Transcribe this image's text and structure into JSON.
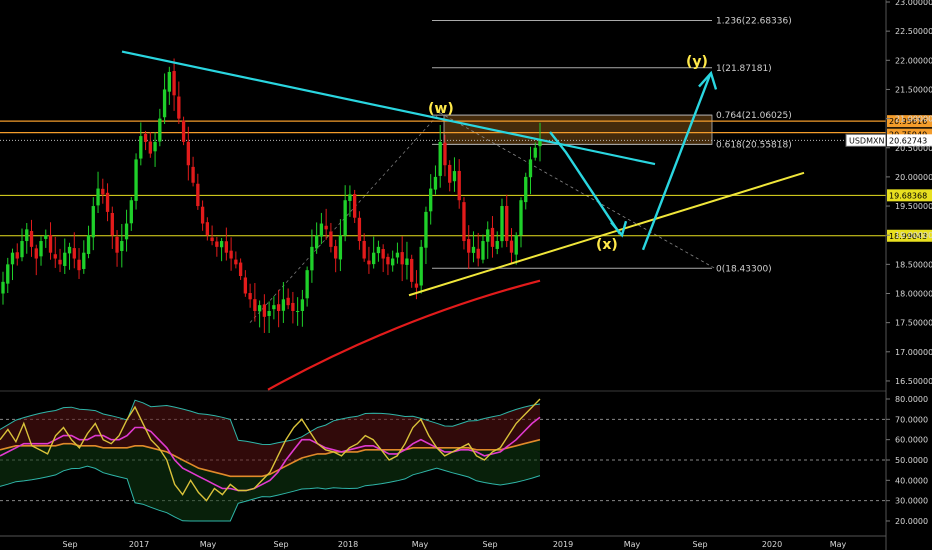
{
  "chart_data": [
    {
      "type": "candlestick",
      "symbol": "USDMXN",
      "price_axis": {
        "ticks": [
          "23.00000",
          "22.50000",
          "22.00000",
          "21.50000",
          "21.00000",
          "20.50000",
          "20.00000",
          "19.50000",
          "19.00000",
          "18.50000",
          "18.00000",
          "17.50000",
          "17.00000",
          "16.50000"
        ]
      },
      "time_axis": {
        "labels": [
          "Sep",
          "2017",
          "May",
          "Sep",
          "2018",
          "May",
          "Sep",
          "2019",
          "May",
          "Sep",
          "2020",
          "May"
        ]
      },
      "last_price": "20.62743",
      "price_tags": [
        {
          "label": "20.95616",
          "color": "#f39c2b"
        },
        {
          "label": "20.75949",
          "color": "#f39c2b"
        },
        {
          "label": "USDMXN",
          "color": "#ffffff"
        },
        {
          "label": "20.62743",
          "color": "#ffffff"
        },
        {
          "label": "19.68368",
          "color": "#e8e020"
        },
        {
          "label": "18.99043",
          "color": "#e8e020"
        }
      ],
      "fib_levels": [
        {
          "label": "1.236(22.68336)",
          "price": 22.68336
        },
        {
          "label": "1(21.87181)",
          "price": 21.87181
        },
        {
          "label": "0.764(21.06025)",
          "price": 21.06025
        },
        {
          "label": "0.618(20.55818)",
          "price": 20.55818
        },
        {
          "label": "0(18.43300)",
          "price": 18.433
        }
      ],
      "wave_labels": [
        "(w)",
        "(x)",
        "(y)"
      ],
      "candles_weekly_close": [
        18.2,
        18.5,
        18.7,
        18.6,
        18.9,
        19.1,
        18.8,
        18.6,
        18.9,
        19.0,
        18.7,
        18.6,
        18.5,
        18.7,
        18.8,
        18.6,
        18.4,
        18.7,
        19.0,
        19.5,
        19.8,
        19.7,
        19.4,
        19.0,
        18.7,
        18.9,
        19.2,
        19.6,
        20.3,
        20.7,
        20.6,
        20.4,
        20.6,
        21.0,
        21.5,
        21.8,
        21.4,
        21.0,
        20.6,
        20.2,
        19.9,
        19.5,
        19.2,
        19.0,
        18.9,
        18.8,
        18.9,
        18.7,
        18.6,
        18.5,
        18.3,
        18.0,
        17.9,
        17.7,
        17.8,
        17.6,
        17.7,
        17.8,
        17.7,
        17.9,
        17.8,
        17.7,
        17.7,
        17.9,
        18.4,
        18.8,
        19.0,
        19.2,
        19.1,
        18.8,
        18.6,
        19.0,
        19.6,
        19.7,
        19.3,
        18.9,
        18.6,
        18.5,
        18.7,
        18.8,
        18.6,
        18.5,
        18.6,
        18.7,
        18.5,
        18.6,
        18.2,
        18.1,
        18.8,
        19.4,
        19.8,
        20.0,
        20.6,
        20.2,
        19.9,
        20.1,
        19.6,
        18.9,
        18.7,
        18.8,
        18.6,
        18.9,
        19.1,
        18.8,
        18.9,
        19.5,
        18.9,
        18.7,
        19.0,
        19.6,
        20.0,
        20.3,
        20.5,
        20.63
      ],
      "trendlines": [
        "resistance (cyan)",
        "support (yellow)",
        "200 MA (red)",
        "projection arrows (cyan)"
      ]
    },
    {
      "type": "line",
      "name": "oscillator",
      "y_axis": {
        "ticks": [
          "80.0000",
          "70.0000",
          "60.0000",
          "50.0000",
          "40.0000",
          "30.0000",
          "20.0000"
        ]
      },
      "levels": [
        70,
        50,
        30
      ],
      "series": [
        {
          "color": "#d9c23a",
          "values": [
            60,
            65,
            59,
            68,
            57,
            55,
            53,
            62,
            66,
            60,
            56,
            63,
            68,
            60,
            58,
            62,
            70,
            76,
            68,
            60,
            56,
            50,
            38,
            33,
            40,
            34,
            30,
            36,
            33,
            38,
            35,
            35,
            36,
            40,
            44,
            52,
            60,
            66,
            70,
            64,
            58,
            55,
            54,
            52,
            56,
            58,
            62,
            60,
            55,
            50,
            52,
            58,
            66,
            70,
            62,
            56,
            52,
            54,
            56,
            58,
            52,
            50,
            54,
            56,
            62,
            68,
            72,
            76,
            80
          ]
        },
        {
          "color": "#e03ad0",
          "values": [
            52,
            54,
            56,
            58,
            58,
            58,
            58,
            60,
            62,
            62,
            60,
            60,
            62,
            62,
            60,
            60,
            62,
            66,
            66,
            64,
            60,
            56,
            50,
            46,
            44,
            42,
            40,
            38,
            36,
            36,
            35,
            35,
            36,
            38,
            40,
            44,
            50,
            55,
            60,
            60,
            58,
            56,
            55,
            54,
            55,
            56,
            57,
            57,
            55,
            53,
            53,
            55,
            58,
            60,
            58,
            56,
            54,
            54,
            55,
            55,
            54,
            52,
            53,
            54,
            57,
            60,
            64,
            68,
            71
          ]
        },
        {
          "color": "#e08a2a",
          "values": [
            55,
            56,
            57,
            57,
            57,
            57,
            57,
            57,
            58,
            58,
            57,
            57,
            57,
            56,
            56,
            56,
            56,
            57,
            57,
            56,
            55,
            54,
            52,
            50,
            48,
            46,
            45,
            44,
            43,
            42,
            42,
            42,
            42,
            42,
            43,
            45,
            47,
            49,
            51,
            52,
            53,
            53,
            54,
            54,
            54,
            54,
            55,
            55,
            55,
            55,
            55,
            55,
            56,
            56,
            56,
            56,
            56,
            56,
            56,
            56,
            55,
            55,
            55,
            55,
            56,
            57,
            58,
            59,
            60
          ]
        }
      ]
    }
  ]
}
